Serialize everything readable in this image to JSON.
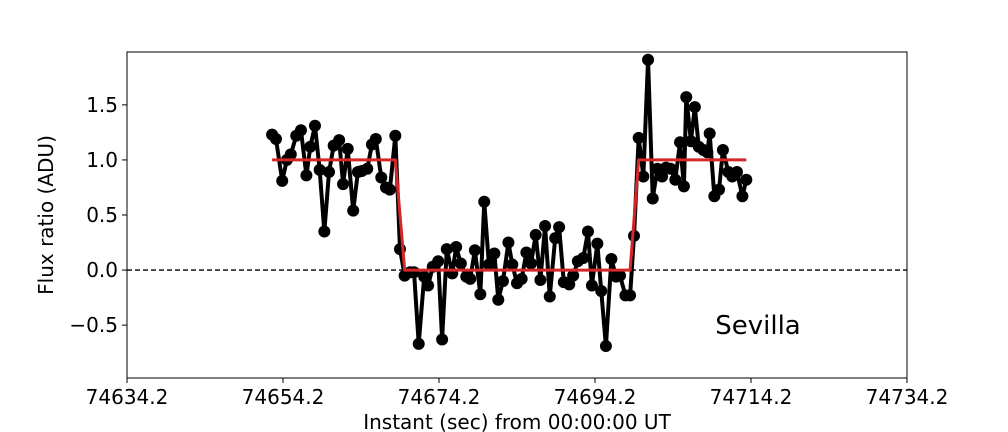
{
  "chart_data": {
    "type": "line",
    "xlabel": "Instant (sec) from 00:00:00 UT",
    "ylabel": "Flux ratio (ADU)",
    "annotation": "Sevilla",
    "xlim": [
      74634.2,
      74734.2
    ],
    "xticks": [
      74634.2,
      74654.2,
      74674.2,
      74694.2,
      74714.2,
      74734.2
    ],
    "ylim": [
      -0.98,
      1.98
    ],
    "yticks": [
      {
        "value": -0.5,
        "label": "−0.5"
      },
      {
        "value": 0,
        "label": "0.0"
      },
      0.5,
      {
        "value": 1,
        "label": "1.0"
      },
      1.5
    ],
    "reference_line": 0,
    "series": [
      {
        "color": "#000000",
        "markers": true,
        "x": [
          74652.8,
          74653.3,
          74654.1,
          74654.7,
          74655.2,
          74655.9,
          74656.5,
          74657.2,
          74657.7,
          74658.3,
          74658.9,
          74659.5,
          74660.1,
          74660.7,
          74661.4,
          74661.9,
          74662.5,
          74663.2,
          74663.8,
          74664.3,
          74665.0,
          74665.6,
          74666.1,
          74666.8,
          74667.4,
          74667.9,
          74668.6,
          74669.2,
          74669.8,
          74670.5,
          74671.0,
          74671.6,
          74672.3,
          74672.8,
          74673.4,
          74674.1,
          74674.6,
          74675.2,
          74675.9,
          74676.4,
          74677.0,
          74677.7,
          74678.2,
          74678.8,
          74679.5,
          74680.0,
          74680.6,
          74681.3,
          74681.8,
          74682.4,
          74683.1,
          74683.6,
          74684.2,
          74684.8,
          74685.4,
          74686.0,
          74686.6,
          74687.2,
          74687.8,
          74688.4,
          74689.1,
          74689.6,
          74690.2,
          74690.9,
          74691.4,
          74692.0,
          74692.7,
          74693.3,
          74693.8,
          74694.5,
          74695.0,
          74695.6,
          74696.3,
          74696.9,
          74697.4,
          74698.1,
          74698.7,
          74699.2,
          74699.8,
          74700.4,
          74701.0,
          74701.6,
          74702.2,
          74702.8,
          74703.3,
          74703.9,
          74704.5,
          74705.1,
          74705.6,
          74705.9,
          74706.5,
          74707.0,
          74707.5,
          74708.1,
          74708.6,
          74708.9,
          74709.5,
          74710.1,
          74710.6,
          74711.3,
          74711.8,
          74712.4,
          74713.1,
          74713.6
        ],
        "values": [
          1.23,
          1.19,
          0.81,
          1.0,
          1.05,
          1.22,
          1.27,
          0.86,
          1.12,
          1.31,
          0.91,
          0.35,
          0.89,
          1.13,
          1.18,
          0.78,
          1.1,
          0.54,
          0.89,
          0.9,
          0.92,
          1.14,
          1.19,
          0.84,
          0.75,
          0.73,
          1.22,
          0.19,
          -0.05,
          -0.02,
          -0.02,
          -0.67,
          -0.06,
          -0.14,
          0.03,
          0.08,
          -0.63,
          0.19,
          -0.03,
          0.21,
          0.06,
          -0.06,
          -0.08,
          0.18,
          -0.22,
          0.62,
          0.05,
          0.15,
          -0.27,
          -0.1,
          0.25,
          0.05,
          -0.12,
          -0.08,
          0.16,
          0.06,
          0.32,
          -0.09,
          0.4,
          -0.24,
          0.29,
          0.39,
          -0.11,
          -0.13,
          -0.05,
          0.08,
          0.11,
          0.35,
          -0.14,
          0.24,
          -0.19,
          -0.69,
          0.1,
          -0.06,
          -0.05,
          -0.23,
          -0.23,
          0.31,
          1.2,
          0.85,
          1.91,
          0.65,
          0.92,
          0.85,
          0.93,
          0.92,
          0.82,
          1.16,
          0.76,
          1.57,
          1.17,
          1.48,
          1.12,
          1.09,
          1.07,
          1.24,
          0.67,
          0.73,
          1.09,
          0.89,
          0.85,
          0.89,
          0.67,
          0.82
        ]
      },
      {
        "color": "#d62728",
        "markers": false,
        "x": [
          74652.8,
          74668.6,
          74669.8,
          74698.7,
          74699.8,
          74713.6
        ],
        "values": [
          1,
          1,
          0,
          0,
          1,
          1
        ]
      }
    ]
  }
}
